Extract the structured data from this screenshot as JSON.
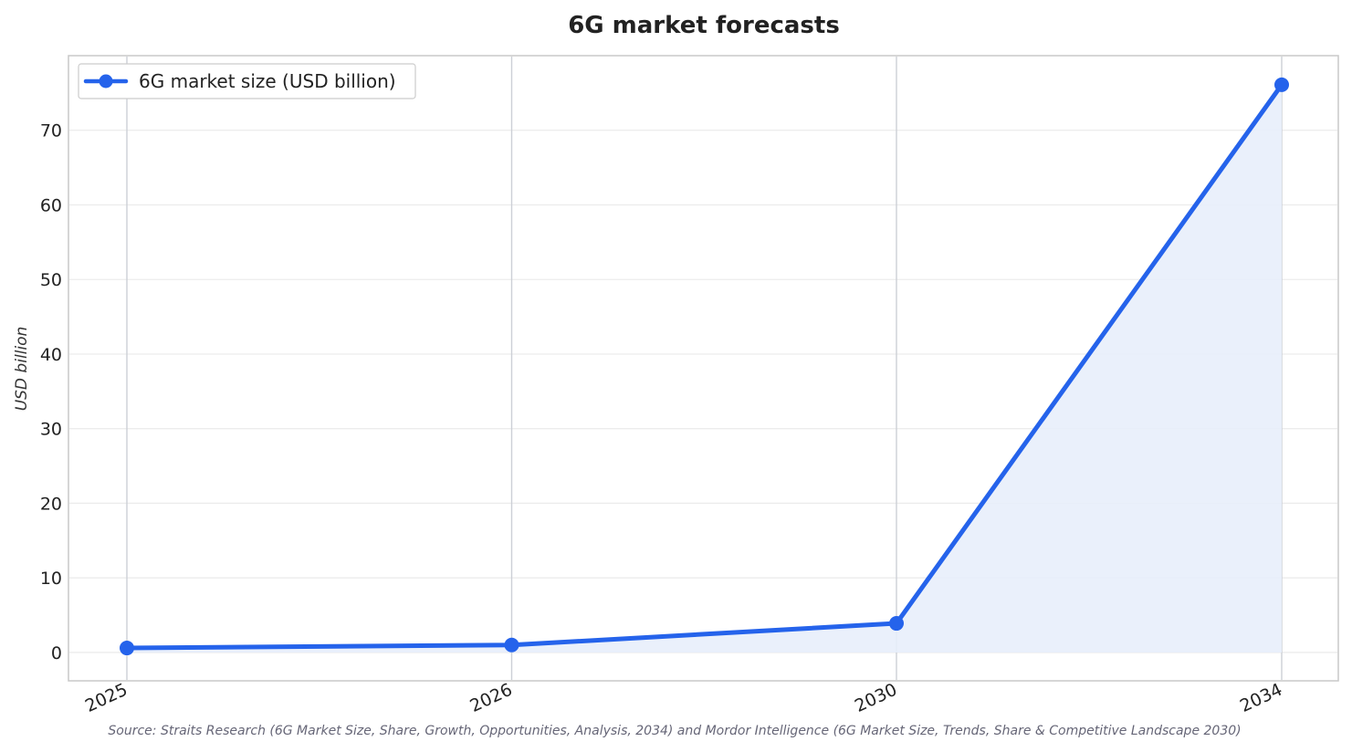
{
  "chart_data": {
    "type": "line",
    "title": "6G market forecasts",
    "xlabel": "",
    "ylabel": "USD billion",
    "x": [
      "2025",
      "2026",
      "2030",
      "2034"
    ],
    "series": [
      {
        "name": "6G market size (USD billion)",
        "values": [
          0.6,
          1.0,
          3.9,
          76.1
        ],
        "color": "#2563eb",
        "fill_color": "#e8eefb"
      }
    ],
    "yticks": [
      "0",
      "10",
      "20",
      "30",
      "40",
      "50",
      "60",
      "70"
    ],
    "ylim": [
      -3.8,
      80
    ],
    "grid": true,
    "legend_position": "top-left",
    "source": "Source: Straits Research (6G Market Size, Share, Growth, Opportunities, Analysis, 2034) and Mordor Intelligence (6G Market Size, Trends, Share & Competitive Landscape 2030)"
  }
}
